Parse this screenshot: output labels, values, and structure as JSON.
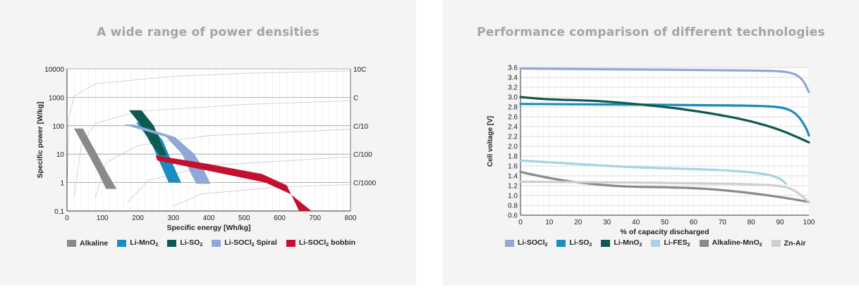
{
  "charts": {
    "left": {
      "title": "A wide range of power densities"
    },
    "right": {
      "title": "Performance comparison of different technologies"
    }
  },
  "chart_data": [
    {
      "type": "area",
      "title": "A wide range of power densities",
      "xlabel": "Specific energy [Wh/kg]",
      "ylabel": "Specific power [W/kg]",
      "xlim": [
        0,
        800
      ],
      "ylim": [
        0.1,
        10000
      ],
      "y_scale": "log",
      "x_ticks": [
        "0",
        "100",
        "200",
        "300",
        "400",
        "500",
        "600",
        "700",
        "800"
      ],
      "y_ticks": [
        "0,1",
        "1",
        "10",
        "100",
        "1000",
        "10000"
      ],
      "rate_labels": [
        "10C",
        "C",
        "C/10",
        "C/100",
        "C/1000"
      ],
      "grid": true,
      "legend_position": "bottom",
      "series": [
        {
          "name": "Alkaline",
          "color": "#8a8a8a",
          "edge_a": [
            [
              20,
              80
            ],
            [
              60,
              10
            ],
            [
              90,
              2
            ],
            [
              110,
              0.6
            ]
          ],
          "edge_b": [
            [
              45,
              80
            ],
            [
              85,
              10
            ],
            [
              115,
              2
            ],
            [
              140,
              0.6
            ]
          ]
        },
        {
          "name": "Li-MnO2",
          "color": "#1a8cc0",
          "edge_a": [
            [
              195,
              130
            ],
            [
              235,
              30
            ],
            [
              262,
              5
            ],
            [
              287,
              1
            ]
          ],
          "edge_b": [
            [
              230,
              130
            ],
            [
              270,
              30
            ],
            [
              297,
              5
            ],
            [
              322,
              1
            ]
          ]
        },
        {
          "name": "Li-SO2",
          "color": "#0e5950",
          "edge_a": [
            [
              175,
              350
            ],
            [
              210,
              100
            ],
            [
              235,
              25
            ],
            [
              262,
              9
            ]
          ],
          "edge_b": [
            [
              210,
              350
            ],
            [
              245,
              100
            ],
            [
              265,
              25
            ],
            [
              282,
              9
            ]
          ]
        },
        {
          "name": "Li-SOCl2 Spiral",
          "color": "#8fa8d6",
          "edge_a": [
            [
              160,
              110
            ],
            [
              280,
              40
            ],
            [
              325,
              10
            ],
            [
              350,
              2
            ],
            [
              365,
              0.9
            ]
          ],
          "edge_b": [
            [
              190,
              110
            ],
            [
              305,
              40
            ],
            [
              360,
              10
            ],
            [
              385,
              3
            ],
            [
              405,
              0.9
            ]
          ]
        },
        {
          "name": "Li-SOCl2 bobbin",
          "color": "#c4102f",
          "edge_a": [
            [
              250,
              9
            ],
            [
              400,
              4.5
            ],
            [
              550,
              2
            ],
            [
              620,
              0.8
            ],
            [
              655,
              0.1
            ]
          ],
          "edge_b": [
            [
              255,
              6
            ],
            [
              420,
              2.3
            ],
            [
              560,
              1
            ],
            [
              630,
              0.4
            ],
            [
              690,
              0.1
            ]
          ]
        }
      ],
      "legend": [
        {
          "name": "Alkaline",
          "color": "#8a8a8a"
        },
        {
          "name": "Li-MnO",
          "sub": "2",
          "color": "#1a8cc0"
        },
        {
          "name": "Li-SO",
          "sub": "2",
          "color": "#0e5950"
        },
        {
          "name": "Li-SOCl",
          "sub": "2",
          "suffix": " Spiral",
          "color": "#8fa8d6"
        },
        {
          "name": "Li-SOCl",
          "sub": "2",
          "suffix": " bobbin",
          "color": "#c4102f"
        }
      ]
    },
    {
      "type": "line",
      "title": "Performance comparison of different technologies",
      "xlabel": "% of capacity discharged",
      "ylabel": "Cell voltage [V]",
      "xlim": [
        0,
        100
      ],
      "ylim": [
        0.6,
        3.6
      ],
      "x_ticks": [
        "0",
        "10",
        "20",
        "30",
        "40",
        "50",
        "60",
        "70",
        "80",
        "90",
        "100"
      ],
      "y_ticks": [
        "0.6",
        "0.8",
        "1.0",
        "1.2",
        "1.4",
        "1.6",
        "1.8",
        "2.0",
        "2.2",
        "2.4",
        "2.6",
        "2.8",
        "3.0",
        "3.2",
        "3.4",
        "3.6"
      ],
      "grid": true,
      "legend_position": "bottom",
      "series": [
        {
          "name": "Li-SOCl2",
          "color": "#8fa8d6",
          "points": [
            [
              0,
              3.58
            ],
            [
              20,
              3.57
            ],
            [
              40,
              3.56
            ],
            [
              60,
              3.55
            ],
            [
              80,
              3.54
            ],
            [
              90,
              3.53
            ],
            [
              95,
              3.48
            ],
            [
              98,
              3.35
            ],
            [
              100,
              3.1
            ]
          ]
        },
        {
          "name": "Li-SO2",
          "color": "#1a8cc0",
          "points": [
            [
              0,
              2.86
            ],
            [
              30,
              2.85
            ],
            [
              60,
              2.84
            ],
            [
              85,
              2.82
            ],
            [
              92,
              2.78
            ],
            [
              96,
              2.65
            ],
            [
              99,
              2.38
            ],
            [
              100,
              2.22
            ]
          ]
        },
        {
          "name": "Li-MnO2",
          "color": "#0e5950",
          "points": [
            [
              0,
              3.0
            ],
            [
              10,
              2.95
            ],
            [
              25,
              2.93
            ],
            [
              40,
              2.86
            ],
            [
              55,
              2.77
            ],
            [
              70,
              2.63
            ],
            [
              80,
              2.51
            ],
            [
              90,
              2.34
            ],
            [
              100,
              2.08
            ]
          ]
        },
        {
          "name": "Li-FES2",
          "color": "#a5d3e5",
          "points": [
            [
              0,
              1.71
            ],
            [
              15,
              1.66
            ],
            [
              30,
              1.6
            ],
            [
              45,
              1.56
            ],
            [
              60,
              1.54
            ],
            [
              75,
              1.5
            ],
            [
              85,
              1.44
            ],
            [
              90,
              1.35
            ],
            [
              92,
              1.24
            ]
          ]
        },
        {
          "name": "Alkaline-MnO2",
          "color": "#8a8a8a",
          "points": [
            [
              0,
              1.48
            ],
            [
              10,
              1.35
            ],
            [
              20,
              1.26
            ],
            [
              35,
              1.18
            ],
            [
              50,
              1.17
            ],
            [
              65,
              1.14
            ],
            [
              80,
              1.05
            ],
            [
              90,
              0.97
            ],
            [
              100,
              0.87
            ]
          ]
        },
        {
          "name": "Zn-Air",
          "color": "#cfcfcf",
          "points": [
            [
              0,
              1.28
            ],
            [
              30,
              1.27
            ],
            [
              60,
              1.25
            ],
            [
              80,
              1.23
            ],
            [
              90,
              1.2
            ],
            [
              95,
              1.12
            ],
            [
              100,
              0.87
            ]
          ]
        }
      ],
      "legend": [
        {
          "name": "Li-SOCl",
          "sub": "2",
          "color": "#8fa8d6"
        },
        {
          "name": "Li-SO",
          "sub": "2",
          "color": "#1a8cc0"
        },
        {
          "name": "Li-MnO",
          "sub": "2",
          "color": "#0e5950"
        },
        {
          "name": "Li-FES",
          "sub": "2",
          "color": "#a5d3e5"
        },
        {
          "name": "Alkaline-MnO",
          "sub": "2",
          "color": "#8a8a8a"
        },
        {
          "name": "Zn-Air",
          "color": "#cfcfcf"
        }
      ]
    }
  ]
}
